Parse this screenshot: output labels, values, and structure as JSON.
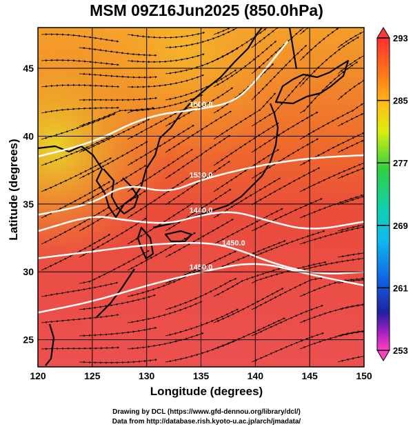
{
  "title": "MSM 09Z16Jun2025 (850.0hPa)",
  "map": {
    "xlabel": "Longitude (degrees)",
    "ylabel": "Latitude  (degrees)",
    "lon_range": [
      120,
      150
    ],
    "lat_range": [
      23,
      48
    ],
    "lon_ticks": [
      "120",
      "125",
      "130",
      "135",
      "140",
      "145",
      "150"
    ],
    "lat_ticks": [
      "25",
      "30",
      "35",
      "40",
      "45"
    ],
    "grid": true
  },
  "colorbar": {
    "min": 253,
    "max": 293,
    "labels": [
      "293",
      "285",
      "277",
      "269",
      "261",
      "253"
    ]
  },
  "contours": [
    {
      "label": "1500.0",
      "lat_at_lon": [
        [
          120,
          38.5
        ],
        [
          125,
          39.5
        ],
        [
          130,
          41.5
        ],
        [
          135,
          42.0
        ],
        [
          138,
          42.5
        ],
        [
          140,
          44
        ],
        [
          143,
          47
        ]
      ]
    },
    {
      "label": "1530.0",
      "lat_at_lon": [
        [
          120,
          34.2
        ],
        [
          125,
          35.0
        ],
        [
          128,
          36.5
        ],
        [
          132,
          35.8
        ],
        [
          135,
          36.8
        ],
        [
          140,
          37.8
        ],
        [
          145,
          38.4
        ],
        [
          150,
          38.6
        ]
      ]
    },
    {
      "label": "1440.0",
      "lat_at_lon": [
        [
          120,
          33.0
        ],
        [
          125,
          34.2
        ],
        [
          128,
          33.8
        ],
        [
          132,
          33.5
        ],
        [
          135,
          34.2
        ],
        [
          138,
          34.5
        ],
        [
          141,
          33.8
        ],
        [
          145,
          33.0
        ],
        [
          150,
          33.7
        ]
      ]
    },
    {
      "label": "1450.0",
      "lat_at_lon": [
        [
          120,
          31.0
        ],
        [
          125,
          31.5
        ],
        [
          130,
          32.0
        ],
        [
          135,
          32.2
        ],
        [
          138,
          31.8
        ],
        [
          142,
          30.5
        ],
        [
          146,
          29.8
        ],
        [
          150,
          30.0
        ]
      ]
    },
    {
      "label": "1450.0",
      "lat_at_lon": [
        [
          120,
          27.0
        ],
        [
          125,
          27.8
        ],
        [
          130,
          29.0
        ],
        [
          135,
          30.0
        ],
        [
          140,
          30.8
        ],
        [
          145,
          29.8
        ],
        [
          150,
          29.0
        ]
      ]
    }
  ],
  "credits": {
    "line1": "Drawing by DCL (https://www.gfd-dennou.org/library/dcl/)",
    "line2": "Data from http://database.rish.kyoto-u.ac.jp/arch/jmadata/"
  }
}
